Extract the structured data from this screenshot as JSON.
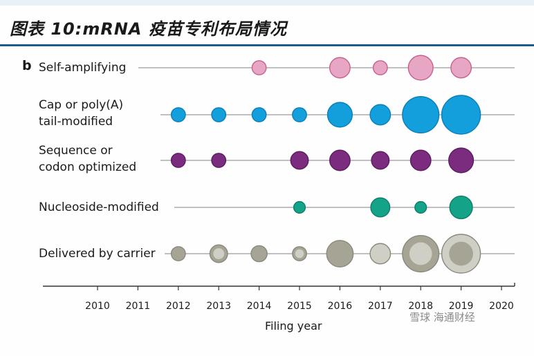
{
  "header": {
    "title": "图表 10:mRNA 疫苗专利布局情况"
  },
  "watermark": "雪球 海通财经",
  "chart_data": {
    "type": "scatter",
    "subtype": "bubble",
    "panel_label": "b",
    "xlabel": "Filing year",
    "xlim": [
      2009.3,
      2020.3
    ],
    "xticks": [
      2010,
      2011,
      2012,
      2013,
      2014,
      2015,
      2016,
      2017,
      2018,
      2019,
      2020
    ],
    "categories": [
      "Self-amplifying",
      "Cap or poly(A)\ntail-modified",
      "Sequence or\ncodon optimized",
      "Nucleoside-modified",
      "Delivered by carrier"
    ],
    "series": [
      {
        "name": "Self-amplifying",
        "label_lines": [
          "Self-amplifying"
        ],
        "color": "#e7a6c4",
        "stroke": "#c7608f",
        "points": [
          {
            "year": 2014,
            "size": 1
          },
          {
            "year": 2016,
            "size": 3
          },
          {
            "year": 2017,
            "size": 1
          },
          {
            "year": 2018,
            "size": 5
          },
          {
            "year": 2019,
            "size": 3
          }
        ]
      },
      {
        "name": "Cap or poly(A) tail-modified",
        "label_lines": [
          "Cap or poly(A)",
          "tail-modified"
        ],
        "color": "#129fdc",
        "stroke": "#0a7fb8",
        "points": [
          {
            "year": 2012,
            "size": 1
          },
          {
            "year": 2013,
            "size": 1
          },
          {
            "year": 2014,
            "size": 1
          },
          {
            "year": 2015,
            "size": 1
          },
          {
            "year": 2016,
            "size": 5
          },
          {
            "year": 2017,
            "size": 3
          },
          {
            "year": 2018,
            "size": 13
          },
          {
            "year": 2019,
            "size": 15
          }
        ]
      },
      {
        "name": "Sequence or codon optimized",
        "label_lines": [
          "Sequence or",
          "codon optimized"
        ],
        "color": "#7b2c7f",
        "stroke": "#5c1c60",
        "points": [
          {
            "year": 2012,
            "size": 1
          },
          {
            "year": 2013,
            "size": 1
          },
          {
            "year": 2015,
            "size": 2
          },
          {
            "year": 2016,
            "size": 3
          },
          {
            "year": 2017,
            "size": 2
          },
          {
            "year": 2018,
            "size": 3
          },
          {
            "year": 2019,
            "size": 5
          }
        ]
      },
      {
        "name": "Nucleoside-modified",
        "label_lines": [
          "Nucleoside-modified"
        ],
        "color": "#14a389",
        "stroke": "#0c7f69",
        "points": [
          {
            "year": 2015,
            "size": 0.5
          },
          {
            "year": 2017,
            "size": 2.5
          },
          {
            "year": 2018,
            "size": 0.5
          },
          {
            "year": 2019,
            "size": 4
          }
        ]
      },
      {
        "name": "Delivered by carrier",
        "label_lines": [
          "Delivered by carrier"
        ],
        "color": "#a6a495",
        "stroke": "#8a887b",
        "inner": "#d0cfc5",
        "points": [
          {
            "year": 2012,
            "size": 1
          },
          {
            "year": 2013,
            "size": 2,
            "ring": true
          },
          {
            "year": 2014,
            "size": 1.5
          },
          {
            "year": 2015,
            "size": 1,
            "ring": true
          },
          {
            "year": 2016,
            "size": 6
          },
          {
            "year": 2017,
            "size": 3,
            "light": true
          },
          {
            "year": 2018,
            "size": 13,
            "ring": true
          },
          {
            "year": 2019,
            "size": 15,
            "ring": true,
            "light": true
          }
        ]
      }
    ],
    "grid": false,
    "legend": "none"
  }
}
